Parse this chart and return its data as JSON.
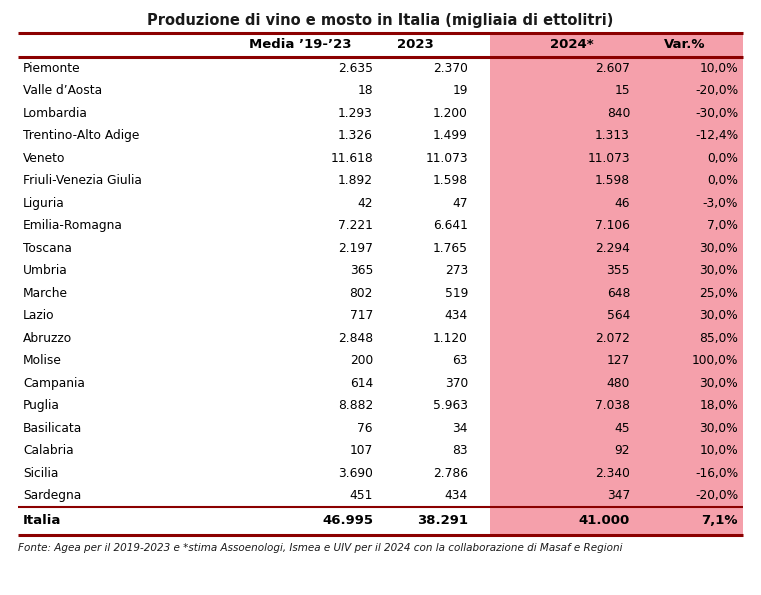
{
  "title": "Produzione di vino e mosto in Italia (migliaia di ettolitri)",
  "col_headers": [
    "Media ’19-’23",
    "2023",
    "2024*",
    "Var.%"
  ],
  "regions": [
    "Piemonte",
    "Valle d’Aosta",
    "Lombardia",
    "Trentino-Alto Adige",
    "Veneto",
    "Friuli-Venezia Giulia",
    "Liguria",
    "Emilia-Romagna",
    "Toscana",
    "Umbria",
    "Marche",
    "Lazio",
    "Abruzzo",
    "Molise",
    "Campania",
    "Puglia",
    "Basilicata",
    "Calabria",
    "Sicilia",
    "Sardegna"
  ],
  "media": [
    "2.635",
    "18",
    "1.293",
    "1.326",
    "11.618",
    "1.892",
    "42",
    "7.221",
    "2.197",
    "365",
    "802",
    "717",
    "2.848",
    "200",
    "614",
    "8.882",
    "76",
    "107",
    "3.690",
    "451"
  ],
  "y2023": [
    "2.370",
    "19",
    "1.200",
    "1.499",
    "11.073",
    "1.598",
    "47",
    "6.641",
    "1.765",
    "273",
    "519",
    "434",
    "1.120",
    "63",
    "370",
    "5.963",
    "34",
    "83",
    "2.786",
    "434"
  ],
  "y2024": [
    "2.607",
    "15",
    "840",
    "1.313",
    "11.073",
    "1.598",
    "46",
    "7.106",
    "2.294",
    "355",
    "648",
    "564",
    "2.072",
    "127",
    "480",
    "7.038",
    "45",
    "92",
    "2.340",
    "347"
  ],
  "var": [
    "10,0%",
    "-20,0%",
    "-30,0%",
    "-12,4%",
    "0,0%",
    "0,0%",
    "-3,0%",
    "7,0%",
    "30,0%",
    "30,0%",
    "25,0%",
    "30,0%",
    "85,0%",
    "100,0%",
    "30,0%",
    "18,0%",
    "30,0%",
    "10,0%",
    "-16,0%",
    "-20,0%"
  ],
  "total_media": "46.995",
  "total_2023": "38.291",
  "total_2024": "41.000",
  "total_var": "7,1%",
  "footer": "Fonte: Agea per il 2019-2023 e *stima Assoenologi, Ismea e UIV per il 2024 con la collaborazione di Masaf e Regioni",
  "pink_color": "#F5A0AB",
  "white_color": "#FFFFFF",
  "bg_color": "#FFFFFF",
  "border_color": "#8B0000",
  "text_color": "#1a1a1a",
  "n_rows": 20
}
